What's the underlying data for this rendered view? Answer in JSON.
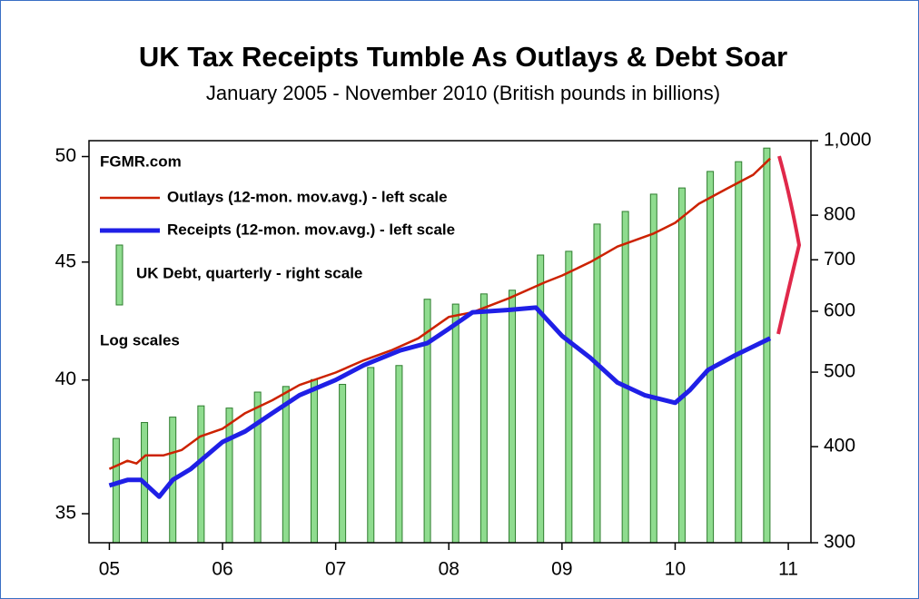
{
  "chart_data": {
    "type": "line",
    "title": "UK Tax Receipts Tumble As Outlays & Debt Soar",
    "subtitle": "January 2005 - November 2010 (British pounds in billions)",
    "annotations": [
      "FGMR.com",
      "Log scales"
    ],
    "log_scale": true,
    "grid": false,
    "xlim": [
      2004.82,
      2011.2
    ],
    "xticks": [
      {
        "value": 2005,
        "label": "05"
      },
      {
        "value": 2006,
        "label": "06"
      },
      {
        "value": 2007,
        "label": "07"
      },
      {
        "value": 2008,
        "label": "08"
      },
      {
        "value": 2009,
        "label": "09"
      },
      {
        "value": 2010,
        "label": "10"
      },
      {
        "value": 2011,
        "label": "11"
      }
    ],
    "ylim": [
      34,
      50.8
    ],
    "yticks": [
      35,
      40,
      45,
      50
    ],
    "y2lim": [
      300,
      1000
    ],
    "y2ticks": [
      300,
      400,
      500,
      600,
      700,
      800,
      {
        "value": 1000,
        "label": "1,000"
      }
    ],
    "series": [
      {
        "name": "Outlays (12-mon. mov.avg.) - left scale",
        "color": "#cc2200",
        "type": "line",
        "x": [
          2005.0,
          2005.16,
          2005.24,
          2005.32,
          2005.48,
          2005.64,
          2005.8,
          2006.0,
          2006.2,
          2006.44,
          2006.68,
          2007.0,
          2007.25,
          2007.49,
          2007.73,
          2008.0,
          2008.21,
          2008.53,
          2008.85,
          2009.0,
          2009.25,
          2009.49,
          2009.81,
          2010.0,
          2010.21,
          2010.45,
          2010.69,
          2010.84
        ],
        "values": [
          36.6,
          36.9,
          36.8,
          37.1,
          37.1,
          37.3,
          37.8,
          38.1,
          38.7,
          39.2,
          39.8,
          40.3,
          40.8,
          41.2,
          41.7,
          42.6,
          42.8,
          43.4,
          44.1,
          44.4,
          45.0,
          45.7,
          46.3,
          46.8,
          47.7,
          48.4,
          49.1,
          49.9
        ]
      },
      {
        "name": "Receipts (12-mon. mov.avg.) - left scale",
        "color": "#1f1fe6",
        "type": "line",
        "x": [
          2005.0,
          2005.16,
          2005.28,
          2005.44,
          2005.56,
          2005.72,
          2006.0,
          2006.2,
          2006.44,
          2006.68,
          2007.0,
          2007.25,
          2007.57,
          2007.81,
          2008.0,
          2008.21,
          2008.53,
          2008.77,
          2009.0,
          2009.25,
          2009.49,
          2009.73,
          2010.0,
          2010.13,
          2010.29,
          2010.53,
          2010.84
        ],
        "values": [
          36.0,
          36.2,
          36.2,
          35.6,
          36.2,
          36.6,
          37.6,
          38.0,
          38.7,
          39.4,
          40.0,
          40.6,
          41.2,
          41.5,
          42.1,
          42.8,
          42.9,
          43.0,
          41.8,
          40.9,
          39.9,
          39.4,
          39.1,
          39.6,
          40.4,
          41.0,
          41.7
        ]
      },
      {
        "name": "UK Debt, quarterly - right scale",
        "color": "#8fdc8f",
        "type": "bar",
        "axis": "y2",
        "x": [
          2005.06,
          2005.31,
          2005.56,
          2005.81,
          2006.06,
          2006.31,
          2006.56,
          2006.81,
          2007.06,
          2007.31,
          2007.56,
          2007.81,
          2008.06,
          2008.31,
          2008.56,
          2008.81,
          2009.06,
          2009.31,
          2009.56,
          2009.81,
          2010.06,
          2010.31,
          2010.56,
          2010.81
        ],
        "values": [
          410,
          430,
          437,
          452,
          449,
          471,
          479,
          489,
          482,
          507,
          510,
          622,
          613,
          632,
          639,
          710,
          718,
          779,
          809,
          852,
          868,
          912,
          939,
          978
        ]
      }
    ]
  }
}
